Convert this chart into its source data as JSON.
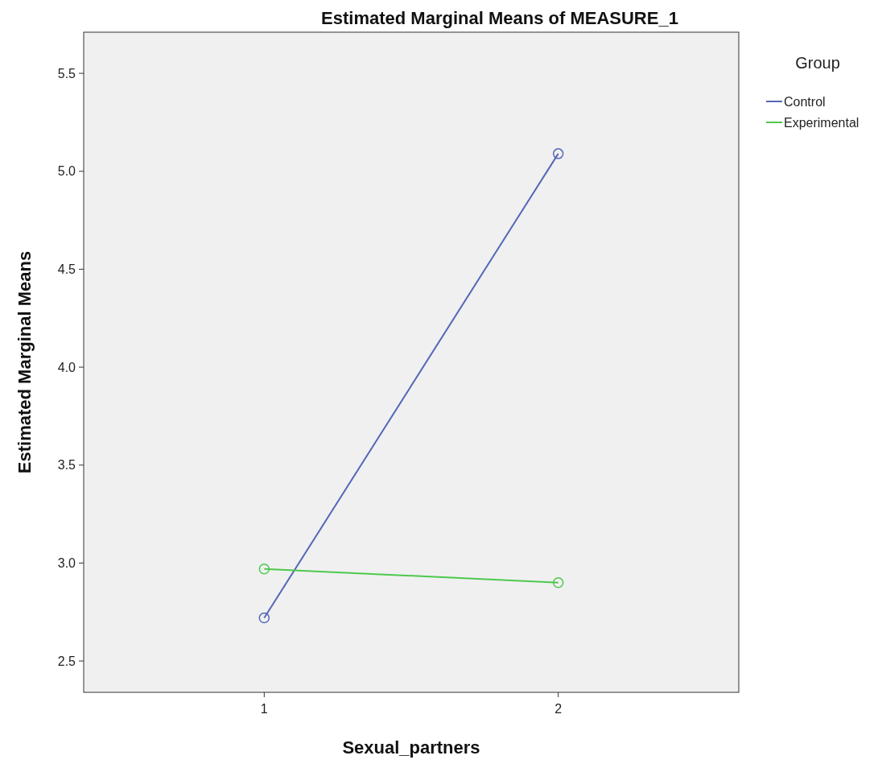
{
  "chart_data": {
    "type": "line",
    "title": "Estimated Marginal Means of MEASURE_1",
    "xlabel": "Sexual_partners",
    "ylabel": "Estimated Marginal Means",
    "legend_title": "Group",
    "categories": [
      "1",
      "2"
    ],
    "series": [
      {
        "name": "Control",
        "color": "#5566b8",
        "values": [
          2.72,
          5.09
        ]
      },
      {
        "name": "Experimental",
        "color": "#4cc94c",
        "values": [
          2.97,
          2.9
        ]
      }
    ],
    "ylim": [
      2.34,
      5.71
    ],
    "yticks": [
      2.5,
      {
        "value": 3,
        "label": "3.0"
      },
      3.5,
      {
        "value": 4,
        "label": "4.0"
      },
      4.5,
      {
        "value": 5,
        "label": "5.0"
      },
      5.5
    ],
    "marker": "circle",
    "legend": "top right",
    "grid": false
  }
}
